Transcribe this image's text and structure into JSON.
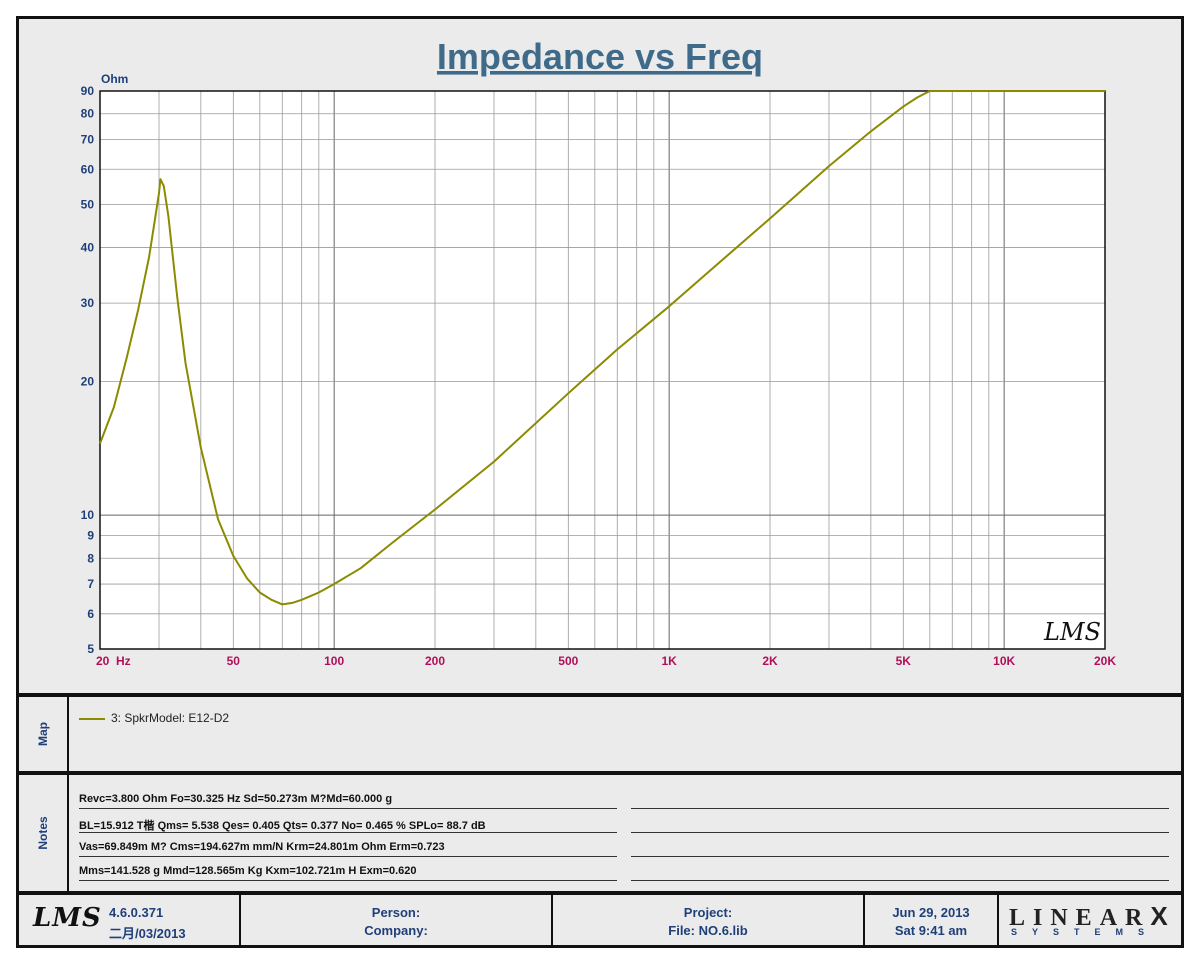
{
  "chart_data": {
    "type": "line",
    "title": "Impedance vs Freq",
    "ylabel": "Ohm",
    "xunit": "Hz",
    "xscale": "log",
    "yscale": "log",
    "xlim": [
      20,
      20000
    ],
    "ylim": [
      5,
      90
    ],
    "grid": true,
    "x_tick_labels": [
      {
        "v": 20,
        "t": "20"
      },
      {
        "v": 50,
        "t": "50"
      },
      {
        "v": 100,
        "t": "100"
      },
      {
        "v": 200,
        "t": "200"
      },
      {
        "v": 500,
        "t": "500"
      },
      {
        "v": 1000,
        "t": "1K"
      },
      {
        "v": 2000,
        "t": "2K"
      },
      {
        "v": 5000,
        "t": "5K"
      },
      {
        "v": 10000,
        "t": "10K"
      },
      {
        "v": 20000,
        "t": "20K"
      }
    ],
    "y_tick_labels": [
      {
        "v": 5,
        "t": "5"
      },
      {
        "v": 6,
        "t": "6"
      },
      {
        "v": 7,
        "t": "7"
      },
      {
        "v": 8,
        "t": "8"
      },
      {
        "v": 9,
        "t": "9"
      },
      {
        "v": 10,
        "t": "10"
      },
      {
        "v": 20,
        "t": "20"
      },
      {
        "v": 30,
        "t": "30"
      },
      {
        "v": 40,
        "t": "40"
      },
      {
        "v": 50,
        "t": "50"
      },
      {
        "v": 60,
        "t": "60"
      },
      {
        "v": 70,
        "t": "70"
      },
      {
        "v": 80,
        "t": "80"
      },
      {
        "v": 90,
        "t": "90"
      }
    ],
    "series": [
      {
        "name": "3: SpkrModel: E12-D2",
        "color": "#8b8b00",
        "x": [
          20,
          22,
          24,
          26,
          28,
          29,
          30,
          30.3,
          31,
          32,
          34,
          36,
          40,
          45,
          50,
          55,
          60,
          65,
          70,
          75,
          80,
          90,
          100,
          120,
          150,
          200,
          300,
          500,
          700,
          1000,
          1500,
          2000,
          3000,
          4000,
          5000,
          5500,
          6000,
          6500,
          8000,
          10000,
          15000,
          20000
        ],
        "y": [
          14.5,
          17.5,
          22.5,
          29,
          38,
          45,
          53,
          57,
          55,
          47,
          31,
          22,
          14.2,
          9.8,
          8.1,
          7.2,
          6.7,
          6.45,
          6.3,
          6.35,
          6.45,
          6.7,
          7.0,
          7.6,
          8.7,
          10.3,
          13.2,
          18.8,
          23.6,
          29.5,
          38.5,
          46.5,
          61,
          73,
          83,
          87,
          90,
          90,
          90,
          90,
          90,
          90
        ]
      }
    ]
  },
  "map": {
    "side_label": "Map",
    "legend_label": "3: SpkrModel: E12-D2"
  },
  "notes": {
    "side_label": "Notes",
    "lines": [
      "Revc=3.800 Ohm  Fo=30.325 Hz  Sd=50.273m M?Md=60.000 g",
      "BL=15.912 T楷  Qms= 5.538  Qes= 0.405  Qts= 0.377  No= 0.465 %  SPLo= 88.7 dB",
      "Vas=69.849m M? Cms=194.627m mm/N  Krm=24.801m Ohm  Erm=0.723",
      "Mms=141.528 g  Mmd=128.565m Kg  Kxm=102.721m H  Exm=0.620"
    ]
  },
  "footer": {
    "logo": "LMS",
    "version": "4.6.0.371",
    "build_date": "二月/03/2013",
    "person_label": "Person:",
    "company_label": "Company:",
    "project_label": "Project:",
    "file_label": "File: NO.6.lib",
    "date": "Jun 29, 2013",
    "time": "Sat  9:41 am",
    "brand_main": "LINEAR",
    "brand_x": "X",
    "brand_sub": "SYSTEMS"
  },
  "watermark": "LMS"
}
